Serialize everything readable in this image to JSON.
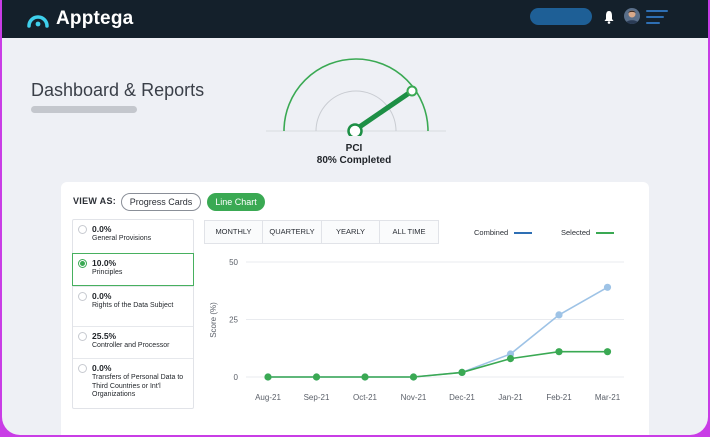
{
  "app": {
    "name": "Apptega"
  },
  "header": {
    "title": "Dashboard & Reports"
  },
  "gauge": {
    "label": "PCI",
    "status": "80% Completed",
    "value_percent": 80
  },
  "view": {
    "label": "VIEW AS:",
    "options": [
      "Progress Cards",
      "Line Chart"
    ],
    "selected": "Line Chart"
  },
  "list": {
    "items": [
      {
        "pct": "0.0%",
        "name": "General Provisions",
        "selected": false
      },
      {
        "pct": "10.0%",
        "name": "Principles",
        "selected": true
      },
      {
        "pct": "0.0%",
        "name": "Rights of the Data Subject",
        "selected": false
      },
      {
        "pct": "25.5%",
        "name": "Controller and Processor",
        "selected": false
      },
      {
        "pct": "0.0%",
        "name": "Transfers of Personal Data to Third Countries or Int'l Organizations",
        "selected": false
      }
    ]
  },
  "tabs": [
    "MONTHLY",
    "QUARTERLY",
    "YEARLY",
    "ALL TIME"
  ],
  "colors": {
    "brand_dark": "#14202b",
    "accent_green": "#3aa953",
    "combined_blue": "#2e6fb4",
    "combined_point": "#9ec3e6",
    "background": "#eef0f5"
  },
  "chart_data": {
    "type": "line",
    "title": "",
    "xlabel": "",
    "ylabel": "Score (%)",
    "ylim": [
      0,
      50
    ],
    "yticks": [
      0,
      25,
      50
    ],
    "categories": [
      "Aug-21",
      "Sep-21",
      "Oct-21",
      "Nov-21",
      "Dec-21",
      "Jan-21",
      "Feb-21",
      "Mar-21"
    ],
    "series": [
      {
        "name": "Combined",
        "values": [
          0,
          0,
          0,
          0,
          2,
          10,
          27,
          39
        ]
      },
      {
        "name": "Selected",
        "values": [
          0,
          0,
          0,
          0,
          2,
          8,
          11,
          11
        ]
      }
    ],
    "grid": true,
    "legend": "top-right"
  }
}
